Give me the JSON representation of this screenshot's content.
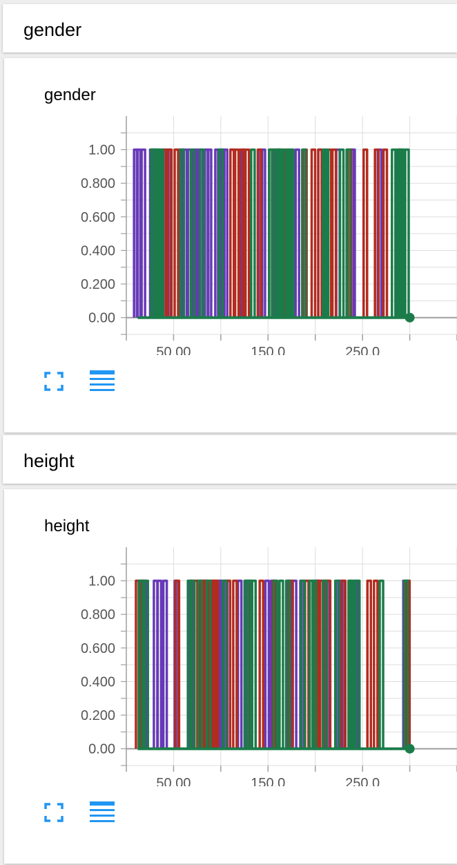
{
  "sections": [
    {
      "header": "gender",
      "card_title": "gender"
    },
    {
      "header": "height",
      "card_title": "height"
    }
  ],
  "colors": {
    "series": [
      "#673ab7",
      "#b22c1f",
      "#1b7c4a"
    ],
    "grid": "#dddddd",
    "axis": "#9e9e9e",
    "toolbar_icon": "#2196f3"
  },
  "icons": {
    "fullscreen": "fullscreen-icon",
    "data_table": "data-table-icon"
  },
  "chart_data": [
    {
      "type": "line",
      "title": "gender",
      "xlim": [
        0,
        350
      ],
      "ylim": [
        -0.1,
        1.2
      ],
      "x_ticks": [
        50,
        150,
        250
      ],
      "x_tick_labels": [
        "50.00",
        "150.0",
        "250.0"
      ],
      "y_ticks": [
        0,
        0.2,
        0.4,
        0.6,
        0.8,
        1.0
      ],
      "y_tick_labels": [
        "0.00",
        "0.200",
        "0.400",
        "0.600",
        "0.800",
        "1.00"
      ],
      "series": [
        {
          "spikes": [
            10,
            13,
            18,
            27,
            29,
            31,
            41,
            45,
            57,
            59,
            62,
            67,
            73,
            76,
            79,
            85,
            88,
            96,
            99,
            102,
            105,
            112,
            124,
            142,
            145,
            158,
            161,
            181,
            205,
            224,
            239,
            240,
            268
          ]
        },
        {
          "spikes": [
            40,
            46,
            53,
            112,
            117,
            122,
            128,
            141,
            153,
            161,
            170,
            189,
            198,
            205,
            215,
            220,
            236,
            253,
            265,
            274,
            290
          ]
        },
        {
          "spikes": [
            28,
            31,
            33,
            35,
            37,
            59,
            70,
            80,
            100,
            134,
            153,
            156,
            162,
            164,
            167,
            173,
            175,
            188,
            210,
            212,
            228,
            235,
            283,
            287,
            289,
            291,
            293,
            297
          ]
        }
      ],
      "end_x": 300
    },
    {
      "type": "line",
      "title": "height",
      "xlim": [
        0,
        350
      ],
      "ylim": [
        -0.1,
        1.2
      ],
      "x_ticks": [
        50,
        150,
        250
      ],
      "x_tick_labels": [
        "50.00",
        "150.0",
        "250.0"
      ],
      "y_ticks": [
        0,
        0.2,
        0.4,
        0.6,
        0.8,
        1.0
      ],
      "y_tick_labels": [
        "0.00",
        "0.200",
        "0.400",
        "0.600",
        "0.800",
        "1.00"
      ],
      "series": [
        {
          "spikes": [
            19,
            31,
            35,
            41,
            53,
            69,
            84,
            98,
            100,
            105,
            108,
            120,
            128,
            149,
            155,
            172,
            178,
            186,
            203,
            213,
            224,
            229,
            243,
            295
          ]
        },
        {
          "spikes": [
            12,
            15,
            17,
            54,
            74,
            77,
            80,
            82,
            85,
            90,
            93,
            95,
            108,
            115,
            131,
            143,
            157,
            174,
            191,
            201,
            203,
            207,
            210,
            214,
            230,
            257,
            264,
            298
          ]
        },
        {
          "spikes": [
            15,
            21,
            67,
            70,
            78,
            87,
            104,
            127,
            130,
            135,
            158,
            164,
            171,
            187,
            196,
            199,
            210,
            223,
            237,
            239,
            245,
            270,
            296
          ]
        }
      ],
      "end_x": 300
    }
  ]
}
